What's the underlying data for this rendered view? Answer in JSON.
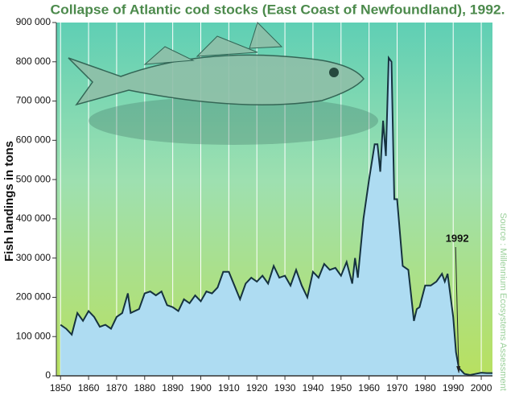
{
  "chart_data": {
    "type": "area",
    "title": "Collapse of Atlantic cod stocks (East Coast of Newfoundland), 1992.",
    "y_label": "Fish landings in tons",
    "source": "Source : Millennium Ecosystems Assessment",
    "color": "#aedcf2",
    "line_color": "#16323f",
    "x": [
      1850,
      1852,
      1854,
      1856,
      1858,
      1860,
      1862,
      1864,
      1866,
      1868,
      1870,
      1872,
      1874,
      1875,
      1878,
      1880,
      1882,
      1884,
      1886,
      1888,
      1890,
      1892,
      1894,
      1896,
      1898,
      1900,
      1902,
      1904,
      1906,
      1908,
      1910,
      1912,
      1914,
      1916,
      1918,
      1920,
      1922,
      1924,
      1926,
      1928,
      1930,
      1932,
      1934,
      1936,
      1938,
      1940,
      1942,
      1944,
      1946,
      1948,
      1950,
      1952,
      1954,
      1955,
      1956,
      1958,
      1960,
      1962,
      1963,
      1964,
      1965,
      1966,
      1967,
      1968,
      1969,
      1970,
      1972,
      1974,
      1976,
      1977,
      1978,
      1980,
      1982,
      1984,
      1986,
      1987,
      1988,
      1990,
      1991,
      1992,
      1994,
      1996,
      1998,
      2000,
      2002,
      2004
    ],
    "values": [
      130000,
      120000,
      105000,
      160000,
      140000,
      165000,
      150000,
      125000,
      130000,
      120000,
      150000,
      160000,
      210000,
      160000,
      170000,
      210000,
      215000,
      205000,
      215000,
      180000,
      175000,
      165000,
      195000,
      185000,
      205000,
      190000,
      215000,
      210000,
      225000,
      265000,
      265000,
      230000,
      195000,
      235000,
      250000,
      240000,
      255000,
      235000,
      280000,
      250000,
      255000,
      230000,
      270000,
      230000,
      200000,
      265000,
      250000,
      285000,
      270000,
      275000,
      255000,
      290000,
      235000,
      300000,
      250000,
      400000,
      500000,
      590000,
      590000,
      520000,
      650000,
      560000,
      810000,
      800000,
      450000,
      450000,
      280000,
      270000,
      140000,
      170000,
      175000,
      230000,
      230000,
      240000,
      260000,
      240000,
      260000,
      150000,
      60000,
      20000,
      5000,
      2000,
      5000,
      8000,
      7000,
      7000
    ],
    "xlim": [
      1848.5,
      2004
    ],
    "ylim": [
      0,
      900000
    ],
    "xticks": [
      1850,
      1860,
      1870,
      1880,
      1890,
      1900,
      1910,
      1920,
      1930,
      1940,
      1950,
      1960,
      1970,
      1980,
      1990,
      2000
    ],
    "yticks": [
      0,
      {
        "value": 100000,
        "label": "100 000"
      },
      {
        "value": 200000,
        "label": "200 000"
      },
      {
        "value": 300000,
        "label": "300 000"
      },
      {
        "value": 400000,
        "label": "400 000"
      },
      {
        "value": 500000,
        "label": "500 000"
      },
      {
        "value": 600000,
        "label": "600 000"
      },
      {
        "value": 700000,
        "label": "700 000"
      },
      {
        "value": 800000,
        "label": "800 000"
      },
      {
        "value": 900000,
        "label": "900 000"
      }
    ],
    "grid": true,
    "annotations": [
      {
        "label": "1992",
        "x": 1992
      }
    ]
  }
}
